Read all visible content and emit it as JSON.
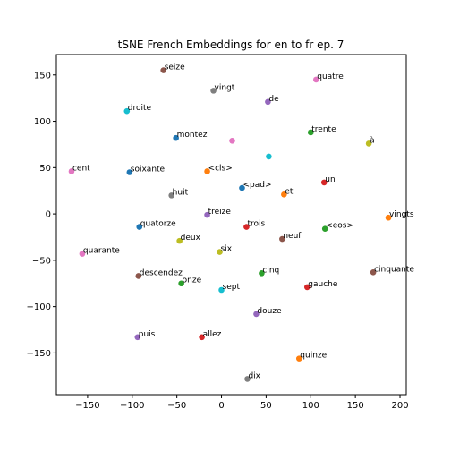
{
  "chart_data": {
    "type": "scatter",
    "title": "tSNE French Embeddings for en to fr ep. 7",
    "xlabel": "",
    "ylabel": "",
    "xlim": [
      -185,
      207
    ],
    "ylim": [
      -195,
      172
    ],
    "xticks": [
      -150,
      -100,
      -50,
      0,
      50,
      100,
      150,
      200
    ],
    "yticks": [
      -150,
      -100,
      -50,
      0,
      50,
      100,
      150
    ],
    "grid": false,
    "points": [
      {
        "label": "seize",
        "x": -65,
        "y": 155,
        "color": "#8c564b"
      },
      {
        "label": "vingt",
        "x": -9,
        "y": 133,
        "color": "#7f7f7f"
      },
      {
        "label": "quatre",
        "x": 106,
        "y": 145,
        "color": "#e377c2"
      },
      {
        "label": "de",
        "x": 52,
        "y": 121,
        "color": "#9467bd"
      },
      {
        "label": "droite",
        "x": -106,
        "y": 111,
        "color": "#17becf"
      },
      {
        "label": "trente",
        "x": 100,
        "y": 88,
        "color": "#2ca02c"
      },
      {
        "label": "montez",
        "x": -51,
        "y": 82,
        "color": "#1f77b4"
      },
      {
        "label": "",
        "x": 12,
        "y": 79,
        "color": "#e377c2"
      },
      {
        "label": "à",
        "x": 165,
        "y": 76,
        "color": "#bcbd22"
      },
      {
        "label": "",
        "x": 53,
        "y": 62,
        "color": "#17becf"
      },
      {
        "label": "cent",
        "x": -168,
        "y": 46,
        "color": "#e377c2"
      },
      {
        "label": "soixante",
        "x": -103,
        "y": 45,
        "color": "#1f77b4"
      },
      {
        "label": "<cls>",
        "x": -16,
        "y": 46,
        "color": "#ff7f0e"
      },
      {
        "label": "un",
        "x": 115,
        "y": 34,
        "color": "#d62728"
      },
      {
        "label": "<pad>",
        "x": 23,
        "y": 28,
        "color": "#1f77b4"
      },
      {
        "label": "et",
        "x": 70,
        "y": 21,
        "color": "#ff7f0e"
      },
      {
        "label": "huit",
        "x": -56,
        "y": 20,
        "color": "#7f7f7f"
      },
      {
        "label": "treize",
        "x": -16,
        "y": -1,
        "color": "#9467bd"
      },
      {
        "label": "vingts",
        "x": 187,
        "y": -4,
        "color": "#ff7f0e"
      },
      {
        "label": "quatorze",
        "x": -92,
        "y": -14,
        "color": "#1f77b4"
      },
      {
        "label": "trois",
        "x": 28,
        "y": -14,
        "color": "#d62728"
      },
      {
        "label": "<eos>",
        "x": 116,
        "y": -16,
        "color": "#2ca02c"
      },
      {
        "label": "deux",
        "x": -47,
        "y": -29,
        "color": "#bcbd22"
      },
      {
        "label": "neuf",
        "x": 68,
        "y": -27,
        "color": "#8c564b"
      },
      {
        "label": "quarante",
        "x": -156,
        "y": -43,
        "color": "#e377c2"
      },
      {
        "label": "six",
        "x": -2,
        "y": -41,
        "color": "#bcbd22"
      },
      {
        "label": "descendez",
        "x": -93,
        "y": -67,
        "color": "#8c564b"
      },
      {
        "label": "cinq",
        "x": 45,
        "y": -64,
        "color": "#2ca02c"
      },
      {
        "label": "cinquante",
        "x": 170,
        "y": -63,
        "color": "#8c564b"
      },
      {
        "label": "onze",
        "x": -45,
        "y": -75,
        "color": "#2ca02c"
      },
      {
        "label": "gauche",
        "x": 96,
        "y": -79,
        "color": "#d62728"
      },
      {
        "label": "sept",
        "x": 0,
        "y": -82,
        "color": "#17becf"
      },
      {
        "label": "douze",
        "x": 39,
        "y": -108,
        "color": "#9467bd"
      },
      {
        "label": "puis",
        "x": -94,
        "y": -133,
        "color": "#9467bd"
      },
      {
        "label": "allez",
        "x": -22,
        "y": -133,
        "color": "#d62728"
      },
      {
        "label": "quinze",
        "x": 87,
        "y": -156,
        "color": "#ff7f0e"
      },
      {
        "label": "dix",
        "x": 29,
        "y": -178,
        "color": "#7f7f7f"
      }
    ]
  }
}
